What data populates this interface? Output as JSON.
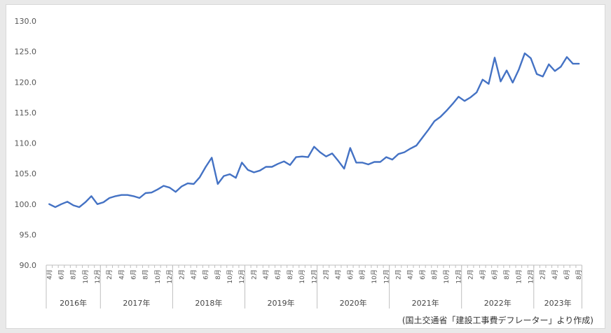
{
  "chart_data": {
    "type": "line",
    "series": [
      {
        "color": "#4472c4",
        "values": [
          100.0,
          99.5,
          100.0,
          100.4,
          99.8,
          99.5,
          100.3,
          101.3,
          100.0,
          100.3,
          101.0,
          101.3,
          101.5,
          101.5,
          101.3,
          101.0,
          101.8,
          101.9,
          102.4,
          103.0,
          102.7,
          102.0,
          102.9,
          103.4,
          103.3,
          104.4,
          106.1,
          107.6,
          103.3,
          104.6,
          104.9,
          104.3,
          106.8,
          105.6,
          105.2,
          105.5,
          106.1,
          106.1,
          106.6,
          107.0,
          106.4,
          107.7,
          107.8,
          107.7,
          109.4,
          108.5,
          107.8,
          108.3,
          107.1,
          105.8,
          109.2,
          106.8,
          106.8,
          106.5,
          106.9,
          106.9,
          107.7,
          107.3,
          108.2,
          108.5,
          109.1,
          109.6,
          110.9,
          112.2,
          113.6,
          114.3,
          115.3,
          116.4,
          117.6,
          116.9,
          117.5,
          118.3,
          120.4,
          119.7,
          124.0,
          120.1,
          121.9,
          119.9,
          122.0,
          124.7,
          123.9,
          121.3,
          120.9,
          122.9,
          121.8,
          122.5,
          124.1,
          123.0,
          123.0
        ]
      }
    ],
    "x_tick_labels": [
      "4月",
      "6月",
      "8月",
      "10月",
      "12月",
      "2月",
      "4月",
      "6月",
      "8月",
      "10月",
      "12月",
      "2月",
      "4月",
      "6月",
      "8月",
      "10月",
      "12月",
      "2月",
      "4月",
      "6月",
      "8月",
      "10月",
      "12月",
      "2月",
      "4月",
      "6月",
      "8月",
      "10月",
      "12月",
      "2月",
      "4月",
      "6月",
      "8月",
      "10月",
      "12月",
      "2月",
      "4月",
      "6月",
      "8月",
      "10月",
      "12月",
      "2月",
      "4月",
      "6月",
      "8月"
    ],
    "years": [
      {
        "label": "2016年",
        "months": 9
      },
      {
        "label": "2017年",
        "months": 12
      },
      {
        "label": "2018年",
        "months": 12
      },
      {
        "label": "2019年",
        "months": 12
      },
      {
        "label": "2020年",
        "months": 12
      },
      {
        "label": "2021年",
        "months": 12
      },
      {
        "label": "2022年",
        "months": 12
      },
      {
        "label": "2023年",
        "months": 8
      }
    ],
    "y_ticks": [
      "90.0",
      "95.0",
      "100.0",
      "105.0",
      "110.0",
      "115.0",
      "120.0",
      "125.0",
      "130.0"
    ],
    "ylim": [
      90,
      130
    ],
    "grid": false
  },
  "source": "(国土交通省「建設工事費デフレーター」より作成)"
}
